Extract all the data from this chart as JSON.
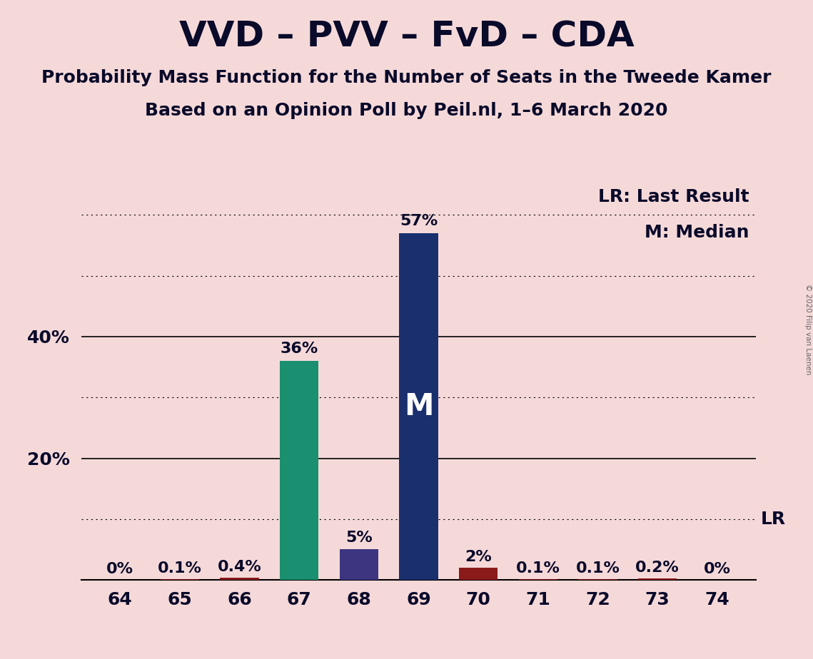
{
  "title": "VVD – PVV – FvD – CDA",
  "subtitle1": "Probability Mass Function for the Number of Seats in the Tweede Kamer",
  "subtitle2": "Based on an Opinion Poll by Peil.nl, 1–6 March 2020",
  "categories": [
    64,
    65,
    66,
    67,
    68,
    69,
    70,
    71,
    72,
    73,
    74
  ],
  "values": [
    0.0,
    0.001,
    0.004,
    0.36,
    0.05,
    0.57,
    0.02,
    0.001,
    0.001,
    0.002,
    0.0
  ],
  "labels": [
    "0%",
    "0.1%",
    "0.4%",
    "36%",
    "5%",
    "57%",
    "2%",
    "0.1%",
    "0.1%",
    "0.2%",
    "0%"
  ],
  "bar_colors": [
    "#8B1A1A",
    "#8B1A1A",
    "#8B1A1A",
    "#1a9070",
    "#3d3580",
    "#1a2f6e",
    "#8B1A1A",
    "#8B1A1A",
    "#8B1A1A",
    "#8B1A1A",
    "#8B1A1A"
  ],
  "background_color": "#f5d9d9",
  "median_bar_idx": 5,
  "ylim": [
    0,
    0.65
  ],
  "solid_yticks": [
    0.2,
    0.4
  ],
  "dotted_yticks": [
    0.1,
    0.3,
    0.5,
    0.6
  ],
  "legend_text1": "LR: Last Result",
  "legend_text2": "M: Median",
  "copyright": "© 2020 Filip van Laenen",
  "title_fontsize": 36,
  "subtitle_fontsize": 18,
  "label_fontsize": 16,
  "tick_fontsize": 18,
  "legend_fontsize": 18
}
